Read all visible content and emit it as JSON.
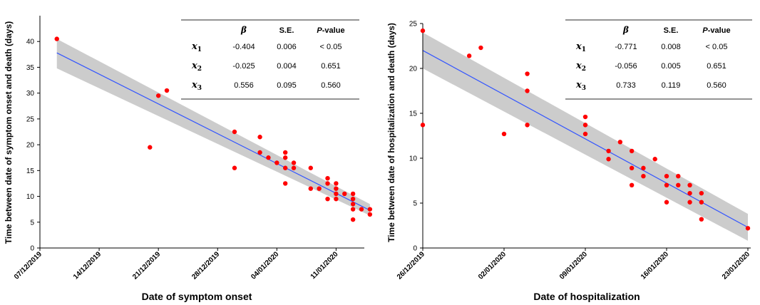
{
  "chart_data": [
    {
      "type": "scatter",
      "title": "",
      "xlabel": "Date of symptom onset",
      "ylabel": "Time between date of symptom onset and death (days)",
      "ylim": [
        0,
        45
      ],
      "yticks": [
        0,
        5,
        10,
        15,
        20,
        25,
        30,
        35,
        40
      ],
      "x_ticks": [
        "07/12/2019",
        "14/12/2019",
        "21/12/2019",
        "28/12/2019",
        "04/01/2020",
        "11/01/2020"
      ],
      "x_type": "date",
      "xlim": [
        "2019-12-07",
        "2020-01-14"
      ],
      "grid": false,
      "point_color": "#ff0000",
      "fit_color": "#3355ff",
      "band_color": "#cccccc",
      "points": [
        {
          "x": "2019-12-09",
          "y": 40.5
        },
        {
          "x": "2019-12-20",
          "y": 19.5
        },
        {
          "x": "2019-12-21",
          "y": 29.5
        },
        {
          "x": "2019-12-22",
          "y": 30.5
        },
        {
          "x": "2019-12-30",
          "y": 22.5
        },
        {
          "x": "2019-12-30",
          "y": 15.5
        },
        {
          "x": "2020-01-02",
          "y": 21.5
        },
        {
          "x": "2020-01-02",
          "y": 18.5
        },
        {
          "x": "2020-01-03",
          "y": 17.5
        },
        {
          "x": "2020-01-04",
          "y": 16.5
        },
        {
          "x": "2020-01-05",
          "y": 18.5
        },
        {
          "x": "2020-01-05",
          "y": 17.5
        },
        {
          "x": "2020-01-05",
          "y": 15.5
        },
        {
          "x": "2020-01-05",
          "y": 12.5
        },
        {
          "x": "2020-01-06",
          "y": 16.5
        },
        {
          "x": "2020-01-06",
          "y": 15.5
        },
        {
          "x": "2020-01-08",
          "y": 15.5
        },
        {
          "x": "2020-01-08",
          "y": 11.5
        },
        {
          "x": "2020-01-09",
          "y": 11.5
        },
        {
          "x": "2020-01-10",
          "y": 13.5
        },
        {
          "x": "2020-01-10",
          "y": 12.5
        },
        {
          "x": "2020-01-10",
          "y": 9.5
        },
        {
          "x": "2020-01-11",
          "y": 12.5
        },
        {
          "x": "2020-01-11",
          "y": 11.5
        },
        {
          "x": "2020-01-11",
          "y": 10.5
        },
        {
          "x": "2020-01-11",
          "y": 9.5
        },
        {
          "x": "2020-01-12",
          "y": 10.5
        },
        {
          "x": "2020-01-13",
          "y": 10.5
        },
        {
          "x": "2020-01-13",
          "y": 9.5
        },
        {
          "x": "2020-01-13",
          "y": 8.5
        },
        {
          "x": "2020-01-13",
          "y": 7.5
        },
        {
          "x": "2020-01-13",
          "y": 5.5
        },
        {
          "x": "2020-01-14",
          "y": 7.5
        },
        {
          "x": "2020-01-15",
          "y": 7.5
        },
        {
          "x": "2020-01-15",
          "y": 6.5
        }
      ],
      "fit": {
        "x": [
          "2019-12-09",
          "2020-01-15"
        ],
        "y": [
          37.8,
          7.3
        ]
      },
      "band": {
        "x": [
          "2019-12-09",
          "2020-01-15"
        ],
        "upper": [
          40.5,
          8.5
        ],
        "lower": [
          34.8,
          6.3
        ]
      },
      "table": {
        "headers": [
          "β",
          "S.E.",
          "P-value"
        ],
        "rows": [
          {
            "var": "x",
            "sub": "1",
            "values": [
              "-0.404",
              "0.006",
              "< 0.05"
            ]
          },
          {
            "var": "x",
            "sub": "2",
            "values": [
              "-0.025",
              "0.004",
              "0.651"
            ]
          },
          {
            "var": "x",
            "sub": "3",
            "values": [
              "0.556",
              "0.095",
              "0.560"
            ]
          }
        ]
      }
    },
    {
      "type": "scatter",
      "title": "",
      "xlabel": "Date of hospitalization",
      "ylabel": "Time between date of hospitalization and death (days)",
      "ylim": [
        0,
        25
      ],
      "yticks": [
        0,
        5,
        10,
        15,
        20,
        25
      ],
      "x_ticks": [
        "26/12/2019",
        "02/01/2020",
        "09/01/2020",
        "16/01/2020",
        "23/01/2020"
      ],
      "x_type": "date",
      "xlim": [
        "2019-12-26",
        "2020-01-23"
      ],
      "grid": false,
      "point_color": "#ff0000",
      "fit_color": "#3355ff",
      "band_color": "#cccccc",
      "points": [
        {
          "x": "2019-12-26",
          "y": 24.2
        },
        {
          "x": "2019-12-26",
          "y": 13.7
        },
        {
          "x": "2019-12-30",
          "y": 21.4
        },
        {
          "x": "2019-12-31",
          "y": 22.3
        },
        {
          "x": "2020-01-02",
          "y": 12.7
        },
        {
          "x": "2020-01-04",
          "y": 19.4
        },
        {
          "x": "2020-01-04",
          "y": 17.5
        },
        {
          "x": "2020-01-04",
          "y": 13.7
        },
        {
          "x": "2020-01-09",
          "y": 14.6
        },
        {
          "x": "2020-01-09",
          "y": 13.7
        },
        {
          "x": "2020-01-09",
          "y": 12.7
        },
        {
          "x": "2020-01-11",
          "y": 10.8
        },
        {
          "x": "2020-01-11",
          "y": 9.9
        },
        {
          "x": "2020-01-12",
          "y": 11.8
        },
        {
          "x": "2020-01-13",
          "y": 10.8
        },
        {
          "x": "2020-01-13",
          "y": 8.9
        },
        {
          "x": "2020-01-13",
          "y": 7.0
        },
        {
          "x": "2020-01-14",
          "y": 8.9
        },
        {
          "x": "2020-01-14",
          "y": 8.0
        },
        {
          "x": "2020-01-15",
          "y": 9.9
        },
        {
          "x": "2020-01-16",
          "y": 8.0
        },
        {
          "x": "2020-01-16",
          "y": 7.0
        },
        {
          "x": "2020-01-16",
          "y": 5.1
        },
        {
          "x": "2020-01-17",
          "y": 8.0
        },
        {
          "x": "2020-01-17",
          "y": 7.0
        },
        {
          "x": "2020-01-18",
          "y": 7.0
        },
        {
          "x": "2020-01-18",
          "y": 6.1
        },
        {
          "x": "2020-01-18",
          "y": 5.1
        },
        {
          "x": "2020-01-19",
          "y": 6.1
        },
        {
          "x": "2020-01-19",
          "y": 5.1
        },
        {
          "x": "2020-01-19",
          "y": 3.2
        },
        {
          "x": "2020-01-23",
          "y": 2.2
        }
      ],
      "fit": {
        "x": [
          "2019-12-26",
          "2020-01-23"
        ],
        "y": [
          22.0,
          2.3
        ]
      },
      "band": {
        "x": [
          "2019-12-26",
          "2020-01-23"
        ],
        "upper": [
          24.0,
          3.8
        ],
        "lower": [
          20.0,
          0.8
        ]
      },
      "table": {
        "headers": [
          "β",
          "S.E.",
          "P-value"
        ],
        "rows": [
          {
            "var": "x",
            "sub": "1",
            "values": [
              "-0.771",
              "0.008",
              "< 0.05"
            ]
          },
          {
            "var": "x",
            "sub": "2",
            "values": [
              "-0.056",
              "0.005",
              "0.651"
            ]
          },
          {
            "var": "x",
            "sub": "3",
            "values": [
              "0.733",
              "0.119",
              "0.560"
            ]
          }
        ]
      }
    }
  ]
}
